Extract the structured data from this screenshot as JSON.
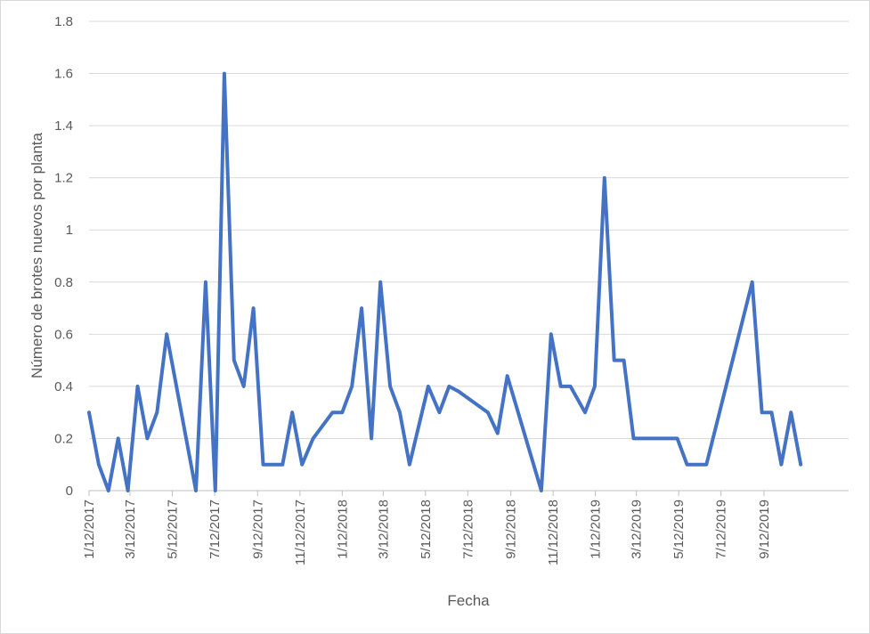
{
  "chart_data": {
    "type": "line",
    "title": "",
    "xlabel": "Fecha",
    "ylabel": "Número de brotes nuevos por planta",
    "ylim": [
      0,
      1.8
    ],
    "yticks": [
      "0",
      "0.2",
      "0.4",
      "0.6",
      "0.8",
      "1",
      "1.2",
      "1.4",
      "1.6",
      "1.8"
    ],
    "xlim": [
      "2017-01-12",
      "2020-01-12"
    ],
    "xtick_dates": [
      "2017-01-12",
      "2017-03-12",
      "2017-05-12",
      "2017-07-12",
      "2017-09-12",
      "2017-11-12",
      "2018-01-12",
      "2018-03-12",
      "2018-05-12",
      "2018-07-12",
      "2018-09-12",
      "2018-11-12",
      "2019-01-12",
      "2019-03-12",
      "2019-05-12",
      "2019-07-12",
      "2019-09-12"
    ],
    "xtick_labels": [
      "1/12/2017",
      "3/12/2017",
      "5/12/2017",
      "7/12/2017",
      "9/12/2017",
      "11/12/2017",
      "1/12/2018",
      "3/12/2018",
      "5/12/2018",
      "7/12/2018",
      "9/12/2018",
      "11/12/2018",
      "1/12/2019",
      "3/12/2019",
      "5/12/2019",
      "7/12/2019",
      "9/12/2019"
    ],
    "grid": true,
    "legend": "none",
    "line_color": "#4472C4",
    "series": [
      {
        "x": [
          "2017-01-12",
          "2017-01-26",
          "2017-02-09",
          "2017-02-23",
          "2017-03-09",
          "2017-03-23",
          "2017-04-06",
          "2017-04-20",
          "2017-05-04",
          "2017-06-15",
          "2017-06-29",
          "2017-07-13",
          "2017-07-26",
          "2017-08-09",
          "2017-08-23",
          "2017-09-06",
          "2017-09-20",
          "2017-10-18",
          "2017-11-01",
          "2017-11-15",
          "2017-12-01",
          "2017-12-29",
          "2018-01-12",
          "2018-01-26",
          "2018-02-09",
          "2018-02-23",
          "2018-03-08",
          "2018-03-22",
          "2018-04-05",
          "2018-04-19",
          "2018-05-16",
          "2018-06-01",
          "2018-06-15",
          "2018-06-29",
          "2018-08-10",
          "2018-08-24",
          "2018-09-07",
          "2018-10-26",
          "2018-11-09",
          "2018-11-23",
          "2018-12-07",
          "2018-12-28",
          "2019-01-11",
          "2019-01-25",
          "2019-02-08",
          "2019-02-22",
          "2019-03-08",
          "2019-03-22",
          "2019-05-10",
          "2019-05-24",
          "2019-06-21",
          "2019-08-26",
          "2019-09-09",
          "2019-09-23",
          "2019-10-07",
          "2019-10-21",
          "2019-11-04"
        ],
        "values": [
          0.3,
          0.1,
          0,
          0.2,
          0,
          0.4,
          0.2,
          0.3,
          0.6,
          0,
          0.8,
          0,
          1.6,
          0.5,
          0.4,
          0.7,
          0.1,
          0.1,
          0.3,
          0.1,
          0.2,
          0.3,
          0.3,
          0.4,
          0.7,
          0.2,
          0.8,
          0.4,
          0.3,
          0.1,
          0.4,
          0.3,
          0.4,
          0.38,
          0.3,
          0.22,
          0.44,
          0,
          0.6,
          0.4,
          0.4,
          0.3,
          0.4,
          1.2,
          0.5,
          0.5,
          0.2,
          0.2,
          0.2,
          0.1,
          0.1,
          0.8,
          0.3,
          0.3,
          0.1,
          0.3,
          0.1
        ]
      }
    ]
  }
}
